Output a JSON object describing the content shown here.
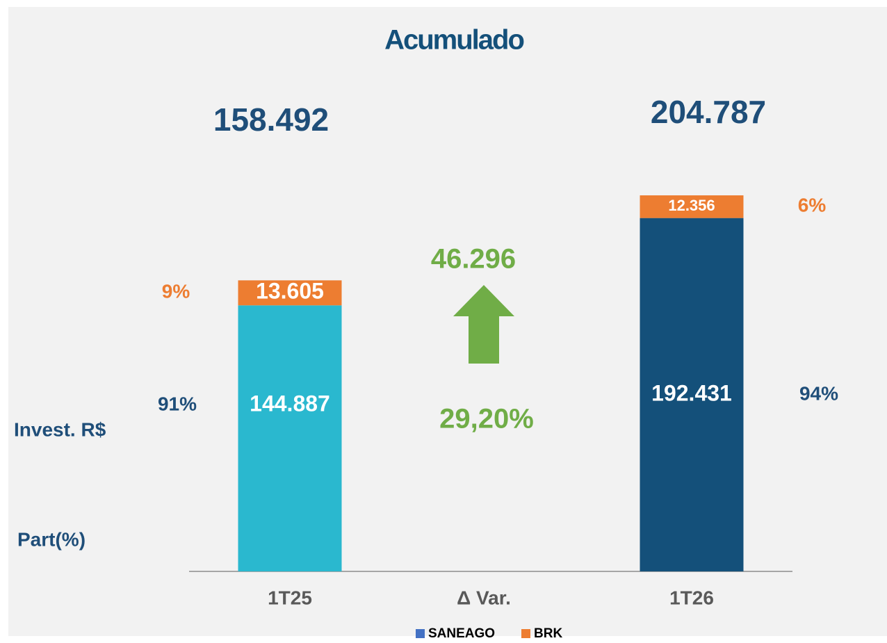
{
  "chart_data": {
    "type": "stacked_bar",
    "title": "Acumulado",
    "categories": [
      "1T25",
      "Δ Var.",
      "1T26"
    ],
    "series": [
      {
        "name": "SANEAGO",
        "color": "#4472c4",
        "bar_colors": [
          "#2ab8cf",
          null,
          "#14507a"
        ],
        "values": [
          144887,
          null,
          192431
        ],
        "value_labels": [
          "144.887",
          null,
          "192.431"
        ],
        "shares": [
          91,
          null,
          94
        ],
        "share_labels": [
          "91%",
          null,
          "94%"
        ],
        "share_color": "#1f4e79"
      },
      {
        "name": "BRK",
        "color": "#ed7d31",
        "bar_colors": [
          "#ed7d31",
          null,
          "#ed7d31"
        ],
        "values": [
          13605,
          null,
          12356
        ],
        "value_labels": [
          "13.605",
          null,
          "12.356"
        ],
        "shares": [
          9,
          null,
          6
        ],
        "share_labels": [
          "9%",
          null,
          "6%"
        ],
        "share_color": "#ed7d31"
      }
    ],
    "totals": {
      "values": [
        158492,
        null,
        204787
      ],
      "value_labels": [
        "158.492",
        null,
        "204.787"
      ]
    },
    "delta": {
      "value": 46296,
      "label": "46.296",
      "pct": 29.2,
      "pct_label": "29,20%",
      "color": "#70ad47"
    },
    "row_labels": [
      "Invest. R$",
      "Part(%)"
    ],
    "ylim": [
      0,
      240000
    ]
  }
}
